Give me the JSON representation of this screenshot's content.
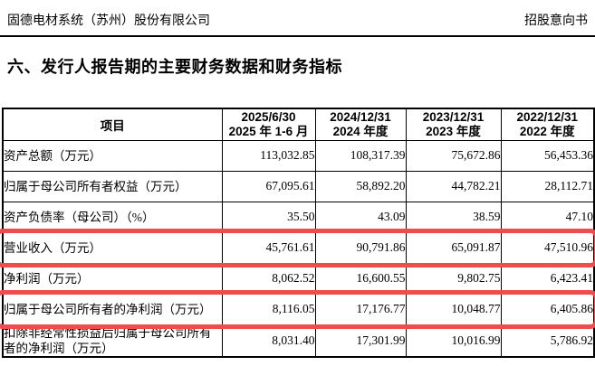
{
  "page_header": {
    "company": "固德电材系统（苏州）股份有限公司",
    "doc_type": "招股意向书"
  },
  "section_title": "六、发行人报告期的主要财务数据和财务指标",
  "highlight_color": "#ee4c4e",
  "table": {
    "header": {
      "item_label": "项目",
      "periods": [
        {
          "line1": "2025/6/30",
          "line2": "2025 年 1-6 月"
        },
        {
          "line1": "2024/12/31",
          "line2": "2024 年度"
        },
        {
          "line1": "2023/12/31",
          "line2": "2023 年度"
        },
        {
          "line1": "2022/12/31",
          "line2": "2022 年度"
        }
      ]
    },
    "rows": [
      {
        "item": "资产总额（万元）",
        "values": [
          "113,032.85",
          "108,317.39",
          "75,672.86",
          "56,453.36"
        ],
        "highlighted": false
      },
      {
        "item": "归属于母公司所有者权益（万元）",
        "values": [
          "67,095.61",
          "58,892.20",
          "44,782.21",
          "28,112.71"
        ],
        "highlighted": false
      },
      {
        "item": "资产负债率（母公司）（%）",
        "values": [
          "35.50",
          "43.09",
          "38.59",
          "47.10"
        ],
        "highlighted": false
      },
      {
        "item": "营业收入（万元）",
        "values": [
          "45,761.61",
          "90,791.86",
          "65,091.87",
          "47,510.96"
        ],
        "highlighted": true
      },
      {
        "item": "净利润（万元）",
        "values": [
          "8,062.52",
          "16,600.55",
          "9,802.75",
          "6,423.41"
        ],
        "highlighted": false
      },
      {
        "item": "归属于母公司所有者的净利润（万元）",
        "values": [
          "8,116.05",
          "17,176.77",
          "10,048.77",
          "6,405.86"
        ],
        "highlighted": true
      },
      {
        "item": "扣除非经常性损益后归属于母公司所有者的净利润（万元）",
        "values": [
          "8,031.40",
          "17,301.99",
          "10,016.99",
          "5,786.92"
        ],
        "highlighted": false
      }
    ]
  }
}
